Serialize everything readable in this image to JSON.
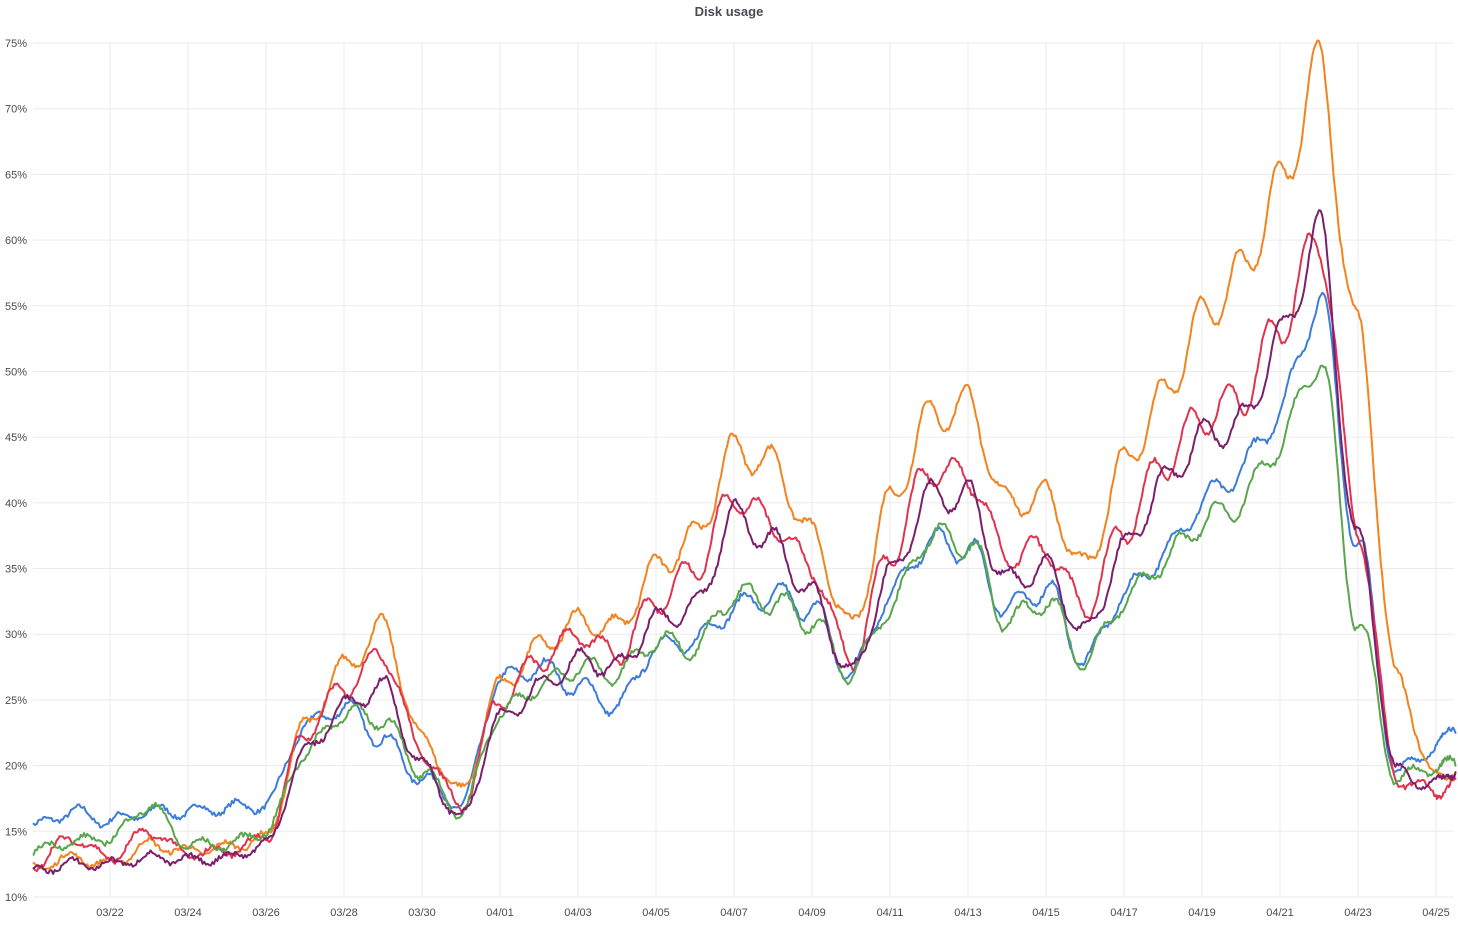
{
  "chart_data": {
    "type": "line",
    "title": "Disk usage",
    "xlabel": "",
    "ylabel": "",
    "grid": true,
    "legend": "none",
    "ylim": [
      10,
      75
    ],
    "y_ticks": [
      "10%",
      "15%",
      "20%",
      "25%",
      "30%",
      "35%",
      "40%",
      "45%",
      "50%",
      "55%",
      "60%",
      "65%",
      "70%",
      "75%"
    ],
    "x_ticks": [
      "03/22",
      "03/24",
      "03/26",
      "03/28",
      "03/30",
      "04/01",
      "04/03",
      "04/05",
      "04/07",
      "04/09",
      "04/11",
      "04/13",
      "04/15",
      "04/17",
      "04/19",
      "04/21",
      "04/23",
      "04/25"
    ],
    "x_start": "03/20",
    "x": [
      "03/20",
      "03/21",
      "03/22",
      "03/23",
      "03/24",
      "03/25",
      "03/26",
      "03/27",
      "03/28",
      "03/29",
      "03/30",
      "03/31",
      "04/01",
      "04/02",
      "04/03",
      "04/04",
      "04/05",
      "04/06",
      "04/07",
      "04/08",
      "04/09",
      "04/10",
      "04/11",
      "04/12",
      "04/13",
      "04/14",
      "04/15",
      "04/16",
      "04/17",
      "04/18",
      "04/19",
      "04/20",
      "04/21",
      "04/22",
      "04/23",
      "04/24",
      "04/25",
      "04/25"
    ],
    "series": [
      {
        "color": "#3d7dd8",
        "values": [
          15.3,
          16.5,
          15.8,
          16.5,
          16.5,
          16.8,
          17.0,
          23.0,
          24.5,
          22.0,
          19.0,
          17.0,
          26.5,
          27.5,
          26.0,
          24.5,
          29.0,
          29.5,
          32.0,
          33.0,
          32.0,
          27.0,
          33.0,
          37.0,
          36.5,
          32.0,
          33.5,
          28.0,
          33.0,
          36.0,
          40.0,
          42.5,
          47.0,
          55.5,
          37.0,
          19.5,
          21.5,
          22.5
        ]
      },
      {
        "color": "#f2831e",
        "values": [
          12.2,
          13.0,
          12.5,
          14.0,
          13.5,
          13.8,
          14.5,
          23.0,
          27.5,
          30.5,
          22.0,
          18.0,
          26.0,
          29.0,
          31.0,
          30.5,
          35.0,
          37.5,
          44.0,
          43.0,
          37.5,
          30.5,
          40.0,
          46.5,
          47.5,
          40.0,
          40.5,
          35.0,
          43.0,
          48.0,
          54.0,
          57.5,
          64.0,
          73.0,
          53.0,
          26.5,
          19.0,
          19.5
        ]
      },
      {
        "color": "#e0344e",
        "values": [
          12.3,
          14.5,
          13.0,
          15.0,
          13.3,
          13.5,
          14.5,
          22.5,
          26.0,
          28.5,
          21.0,
          17.0,
          25.0,
          28.0,
          30.0,
          28.5,
          32.5,
          35.0,
          40.5,
          38.5,
          35.0,
          28.0,
          36.0,
          42.5,
          42.0,
          36.0,
          36.5,
          32.0,
          38.0,
          43.0,
          46.5,
          48.0,
          53.5,
          60.0,
          38.0,
          19.0,
          18.0,
          19.0
        ]
      },
      {
        "color": "#5aa64c",
        "values": [
          13.5,
          14.2,
          14.5,
          17.0,
          14.0,
          14.0,
          15.0,
          21.0,
          24.0,
          23.5,
          19.5,
          16.5,
          24.0,
          26.0,
          27.5,
          27.0,
          29.5,
          29.0,
          33.0,
          32.5,
          31.0,
          27.0,
          32.0,
          37.5,
          37.0,
          31.0,
          32.5,
          28.0,
          32.5,
          35.5,
          38.5,
          40.0,
          44.5,
          51.0,
          31.0,
          19.0,
          20.0,
          20.0
        ]
      },
      {
        "color": "#7a1f6b",
        "values": [
          12.0,
          12.5,
          12.5,
          13.0,
          12.8,
          13.0,
          14.0,
          21.0,
          24.5,
          26.0,
          20.0,
          16.0,
          23.5,
          26.0,
          28.0,
          27.5,
          31.0,
          32.0,
          39.0,
          37.0,
          33.0,
          27.0,
          34.5,
          40.5,
          40.5,
          34.0,
          35.0,
          30.0,
          36.5,
          41.5,
          45.0,
          46.0,
          52.5,
          60.5,
          37.0,
          19.5,
          18.5,
          19.5
        ]
      }
    ]
  }
}
